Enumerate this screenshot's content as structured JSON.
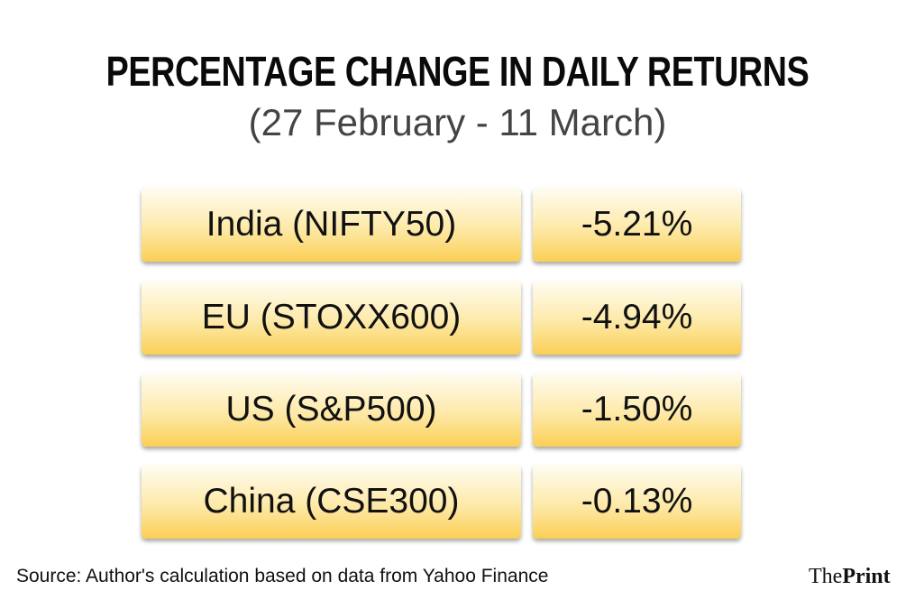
{
  "title": "PERCENTAGE CHANGE IN DAILY RETURNS",
  "subtitle": "(27 February - 11 March)",
  "rows": [
    {
      "index": "India (NIFTY50)",
      "change": "-5.21%"
    },
    {
      "index": "EU (STOXX600)",
      "change": "-4.94%"
    },
    {
      "index": "US (S&P500)",
      "change": "-1.50%"
    },
    {
      "index": "China (CSE300)",
      "change": "-0.13%"
    }
  ],
  "source": "Source: Author's calculation based on data from Yahoo Finance",
  "logo": {
    "part1": "The",
    "part2": "Print"
  }
}
